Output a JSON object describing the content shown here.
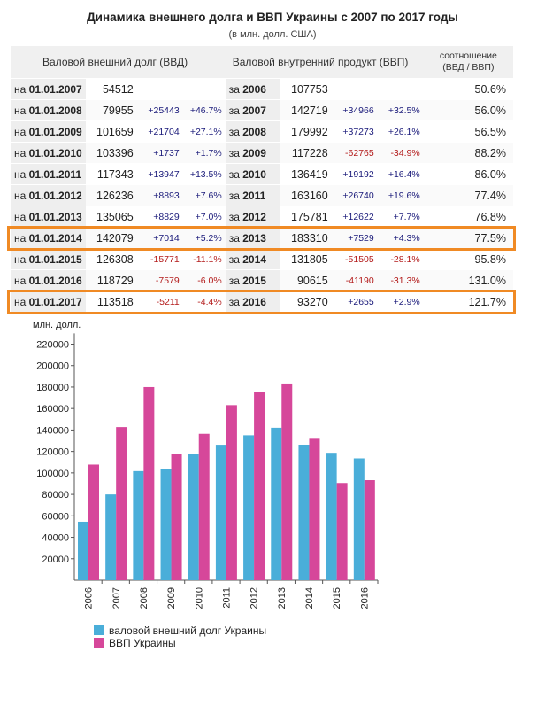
{
  "title": "Динамика внешнего долга и ВВП Украины с 2007 по 2017 годы",
  "subtitle": "(в млн. долл. США)",
  "table": {
    "header": {
      "debt": "Валовой внешний долг (ВВД)",
      "gdp": "Валовой внутренний продукт (ВВП)",
      "ratio_line1": "соотношение",
      "ratio_line2": "(ВВД / ВВП)"
    },
    "rows": [
      {
        "date_prefix": "на",
        "date": "01.01.2007",
        "debt": "54512",
        "debt_delta": "",
        "debt_pct": "",
        "year_prefix": "за",
        "year": "2006",
        "gdp": "107753",
        "gdp_delta": "",
        "gdp_pct": "",
        "ratio": "50.6%"
      },
      {
        "date_prefix": "на",
        "date": "01.01.2008",
        "debt": "79955",
        "debt_delta": "+25443",
        "debt_pct": "+46.7%",
        "year_prefix": "за",
        "year": "2007",
        "gdp": "142719",
        "gdp_delta": "+34966",
        "gdp_pct": "+32.5%",
        "ratio": "56.0%"
      },
      {
        "date_prefix": "на",
        "date": "01.01.2009",
        "debt": "101659",
        "debt_delta": "+21704",
        "debt_pct": "+27.1%",
        "year_prefix": "за",
        "year": "2008",
        "gdp": "179992",
        "gdp_delta": "+37273",
        "gdp_pct": "+26.1%",
        "ratio": "56.5%"
      },
      {
        "date_prefix": "на",
        "date": "01.01.2010",
        "debt": "103396",
        "debt_delta": "+1737",
        "debt_pct": "+1.7%",
        "year_prefix": "за",
        "year": "2009",
        "gdp": "117228",
        "gdp_delta": "-62765",
        "gdp_pct": "-34.9%",
        "ratio": "88.2%"
      },
      {
        "date_prefix": "на",
        "date": "01.01.2011",
        "debt": "117343",
        "debt_delta": "+13947",
        "debt_pct": "+13.5%",
        "year_prefix": "за",
        "year": "2010",
        "gdp": "136419",
        "gdp_delta": "+19192",
        "gdp_pct": "+16.4%",
        "ratio": "86.0%"
      },
      {
        "date_prefix": "на",
        "date": "01.01.2012",
        "debt": "126236",
        "debt_delta": "+8893",
        "debt_pct": "+7.6%",
        "year_prefix": "за",
        "year": "2011",
        "gdp": "163160",
        "gdp_delta": "+26740",
        "gdp_pct": "+19.6%",
        "ratio": "77.4%"
      },
      {
        "date_prefix": "на",
        "date": "01.01.2013",
        "debt": "135065",
        "debt_delta": "+8829",
        "debt_pct": "+7.0%",
        "year_prefix": "за",
        "year": "2012",
        "gdp": "175781",
        "gdp_delta": "+12622",
        "gdp_pct": "+7.7%",
        "ratio": "76.8%"
      },
      {
        "date_prefix": "на",
        "date": "01.01.2014",
        "debt": "142079",
        "debt_delta": "+7014",
        "debt_pct": "+5.2%",
        "year_prefix": "за",
        "year": "2013",
        "gdp": "183310",
        "gdp_delta": "+7529",
        "gdp_pct": "+4.3%",
        "ratio": "77.5%"
      },
      {
        "date_prefix": "на",
        "date": "01.01.2015",
        "debt": "126308",
        "debt_delta": "-15771",
        "debt_pct": "-11.1%",
        "year_prefix": "за",
        "year": "2014",
        "gdp": "131805",
        "gdp_delta": "-51505",
        "gdp_pct": "-28.1%",
        "ratio": "95.8%"
      },
      {
        "date_prefix": "на",
        "date": "01.01.2016",
        "debt": "118729",
        "debt_delta": "-7579",
        "debt_pct": "-6.0%",
        "year_prefix": "за",
        "year": "2015",
        "gdp": "90615",
        "gdp_delta": "-41190",
        "gdp_pct": "-31.3%",
        "ratio": "131.0%"
      },
      {
        "date_prefix": "на",
        "date": "01.01.2017",
        "debt": "113518",
        "debt_delta": "-5211",
        "debt_pct": "-4.4%",
        "year_prefix": "за",
        "year": "2016",
        "gdp": "93270",
        "gdp_delta": "+2655",
        "gdp_pct": "+2.9%",
        "ratio": "121.7%"
      }
    ],
    "highlighted_rows": [
      "01.01.2014",
      "01.01.2017"
    ]
  },
  "colors": {
    "debt_series": "#4aaed9",
    "gdp_series": "#d6479a",
    "highlight": "#f08a24",
    "positive": "#1a1a7a",
    "negative": "#b31b1b"
  },
  "chart_data": {
    "type": "bar",
    "ylabel": "млн. долл.",
    "categories": [
      "2006",
      "2007",
      "2008",
      "2009",
      "2010",
      "2011",
      "2012",
      "2013",
      "2014",
      "2015",
      "2016"
    ],
    "series": [
      {
        "name": "валовой внешний долг Украины",
        "values": [
          54512,
          79955,
          101659,
          103396,
          117343,
          126236,
          135065,
          142079,
          126308,
          118729,
          113518
        ]
      },
      {
        "name": "ВВП Украины",
        "values": [
          107753,
          142719,
          179992,
          117228,
          136419,
          163160,
          175781,
          183310,
          131805,
          90615,
          93270
        ]
      }
    ],
    "ylim": [
      0,
      230000
    ],
    "yticks": [
      20000,
      40000,
      60000,
      80000,
      100000,
      120000,
      140000,
      160000,
      180000,
      200000,
      220000
    ],
    "grid": false,
    "legend_position": "bottom-left"
  }
}
